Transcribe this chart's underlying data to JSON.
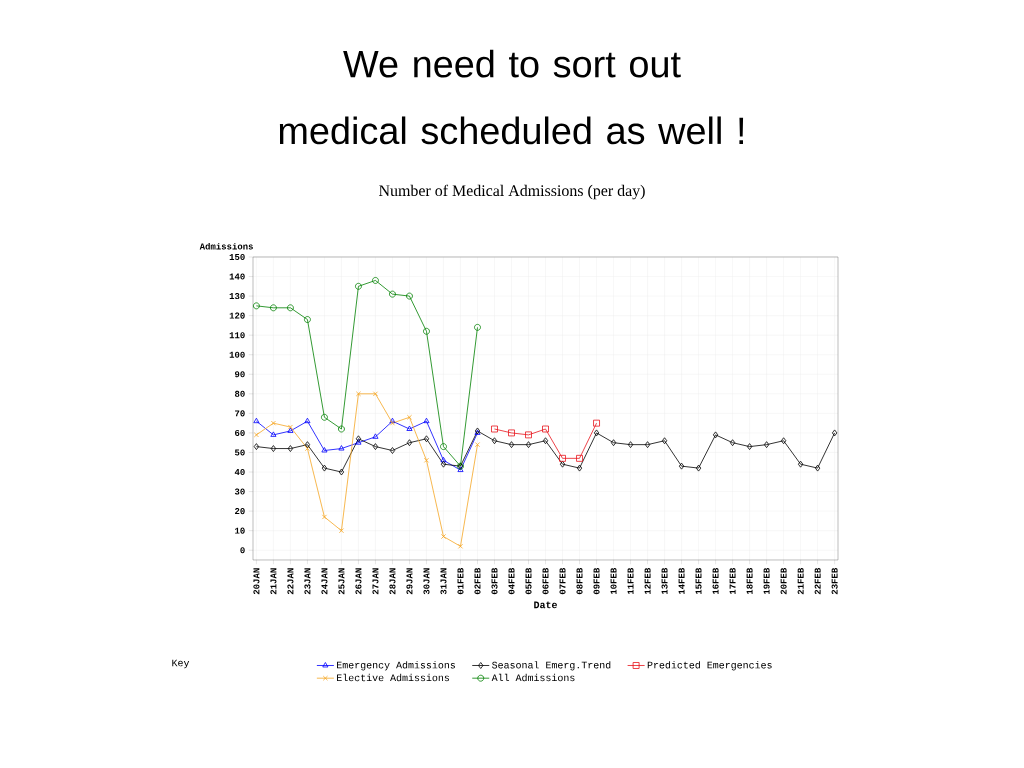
{
  "chart_data": {
    "type": "line",
    "title": "We need to sort out medical scheduled as well !",
    "subtitle": "Number of Medical Admissions (per day)",
    "xlabel": "Date",
    "ylabel": "Admissions",
    "legend_title": "Key",
    "categories": [
      "20JAN",
      "21JAN",
      "22JAN",
      "23JAN",
      "24JAN",
      "25JAN",
      "26JAN",
      "27JAN",
      "28JAN",
      "29JAN",
      "30JAN",
      "31JAN",
      "01FEB",
      "02FEB",
      "03FEB",
      "04FEB",
      "05FEB",
      "06FEB",
      "07FEB",
      "08FEB",
      "09FEB",
      "10FEB",
      "11FEB",
      "12FEB",
      "13FEB",
      "14FEB",
      "15FEB",
      "16FEB",
      "17FEB",
      "18FEB",
      "19FEB",
      "20FEB",
      "21FEB",
      "22FEB",
      "23FEB"
    ],
    "series": [
      {
        "name": "Emergency Admissions",
        "color": "#0000ff",
        "marker": "triangle",
        "values": [
          66,
          59,
          61,
          66,
          51,
          52,
          55,
          58,
          66,
          62,
          66,
          46,
          41,
          60,
          null,
          null,
          null,
          null,
          null,
          null,
          null,
          null,
          null,
          null,
          null,
          null,
          null,
          null,
          null,
          null,
          null,
          null,
          null,
          null,
          null
        ]
      },
      {
        "name": "Seasonal Emerg.Trend",
        "color": "#000000",
        "marker": "diamond",
        "values": [
          53,
          52,
          52,
          54,
          42,
          40,
          57,
          53,
          51,
          55,
          57,
          44,
          43,
          61,
          56,
          54,
          54,
          56,
          44,
          42,
          60,
          55,
          54,
          54,
          56,
          43,
          42,
          59,
          55,
          53,
          54,
          56,
          44,
          42,
          60
        ]
      },
      {
        "name": "Predicted Emergencies",
        "color": "#e8141c",
        "marker": "square",
        "values": [
          null,
          null,
          null,
          null,
          null,
          null,
          null,
          null,
          null,
          null,
          null,
          null,
          null,
          null,
          62,
          60,
          59,
          62,
          47,
          47,
          65,
          null,
          null,
          null,
          null,
          null,
          null,
          null,
          null,
          null,
          null,
          null,
          null,
          null,
          null
        ]
      },
      {
        "name": "Elective Admissions",
        "color": "#f5a623",
        "marker": "cross",
        "values": [
          59,
          65,
          63,
          52,
          17,
          10,
          80,
          80,
          65,
          68,
          46,
          7,
          2,
          54,
          null,
          null,
          null,
          null,
          null,
          null,
          null,
          null,
          null,
          null,
          null,
          null,
          null,
          null,
          null,
          null,
          null,
          null,
          null,
          null,
          null
        ]
      },
      {
        "name": "All Admissions",
        "color": "#008000",
        "marker": "circle",
        "values": [
          125,
          124,
          124,
          118,
          68,
          62,
          135,
          138,
          131,
          130,
          112,
          53,
          43,
          114,
          null,
          null,
          null,
          null,
          null,
          null,
          null,
          null,
          null,
          null,
          null,
          null,
          null,
          null,
          null,
          null,
          null,
          null,
          null,
          null,
          null
        ]
      }
    ],
    "ylim": [
      -5,
      150
    ],
    "yticks": [
      0,
      10,
      20,
      30,
      40,
      50,
      60,
      70,
      80,
      90,
      100,
      110,
      120,
      130,
      140,
      150
    ],
    "grid": true,
    "legend": "bottom"
  }
}
